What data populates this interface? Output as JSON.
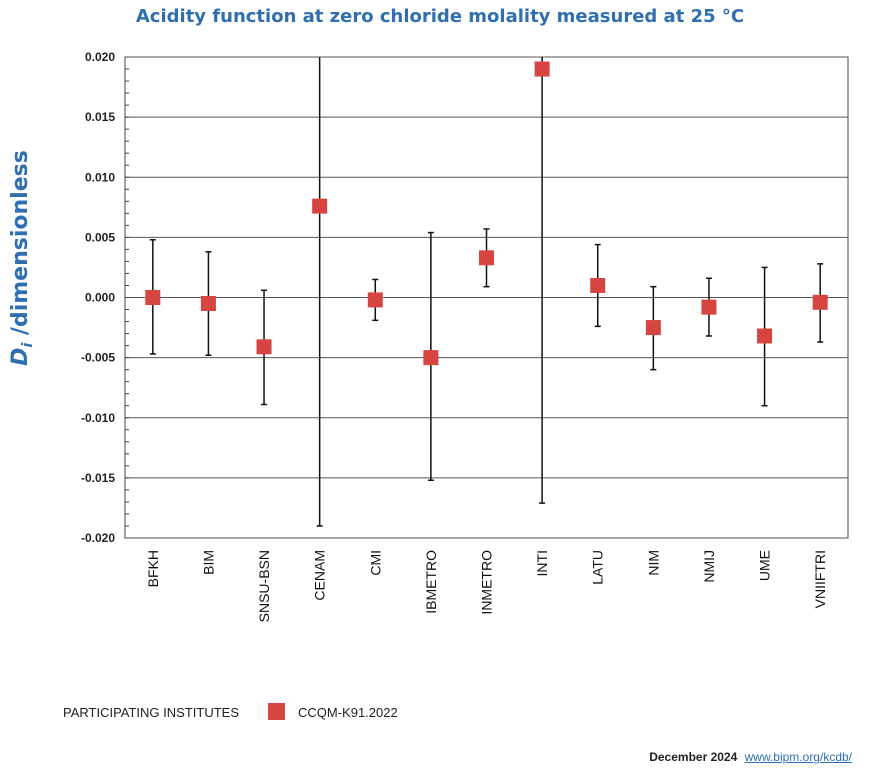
{
  "chart_data": {
    "type": "scatter",
    "title": "Acidity function at zero chloride molality measured at 25 °C",
    "ylabel_main": "D",
    "ylabel_sub": "i",
    "ylabel_rest": " /dimensionless",
    "xlabel": "",
    "ylim": [
      -0.02,
      0.02
    ],
    "yticks": [
      "0.020",
      "0.015",
      "0.010",
      "0.005",
      "0.000",
      "-0.005",
      "-0.010",
      "-0.015",
      "-0.020"
    ],
    "ytick_values": [
      0.02,
      0.015,
      0.01,
      0.005,
      0.0,
      -0.005,
      -0.01,
      -0.015,
      -0.02
    ],
    "grid": true,
    "series": [
      {
        "name": "CCQM-K91.2022",
        "color": "#d64541",
        "categories": [
          "BFKH",
          "BIM",
          "SNSU-BSN",
          "CENAM",
          "CMI",
          "IBMETRO",
          "INMETRO",
          "INTI",
          "LATU",
          "NIM",
          "NMIJ",
          "UME",
          "VNIIFTRI"
        ],
        "values": [
          0.0,
          -0.0005,
          -0.0041,
          0.0076,
          -0.0002,
          -0.005,
          0.0033,
          0.019,
          0.001,
          -0.0025,
          -0.0008,
          -0.0032,
          -0.0004
        ],
        "upper": [
          0.0048,
          0.0038,
          0.0006,
          0.02,
          0.0015,
          0.0054,
          0.0057,
          0.02,
          0.0044,
          0.0009,
          0.0016,
          0.0025,
          0.0028
        ],
        "lower": [
          -0.0047,
          -0.0048,
          -0.0089,
          -0.019,
          -0.0019,
          -0.0152,
          0.0009,
          -0.0171,
          -0.0024,
          -0.006,
          -0.0032,
          -0.009,
          -0.0037
        ]
      }
    ]
  },
  "legend": {
    "title": "PARTICIPATING INSTITUTES",
    "label": "CCQM-K91.2022"
  },
  "footer": {
    "date": "December 2024",
    "link": "www.bipm.org/kcdb/"
  }
}
